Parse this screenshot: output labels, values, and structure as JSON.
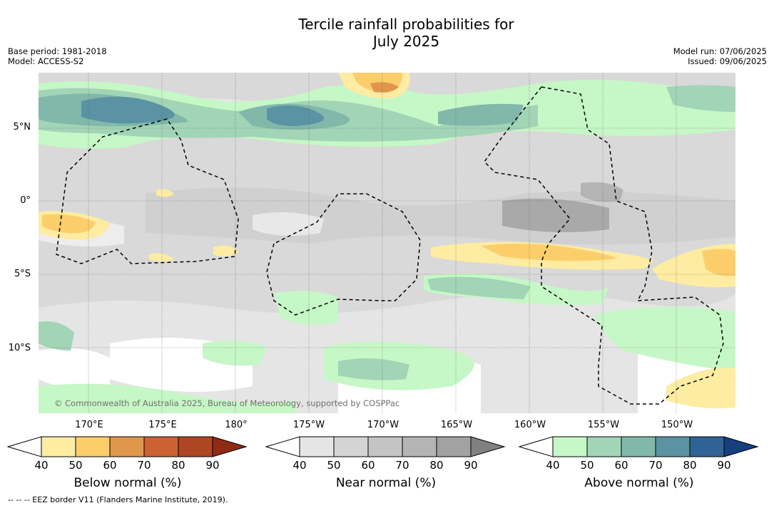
{
  "title_line1": "Tercile rainfall probabilities for",
  "title_line2": "July 2025",
  "base_period": "Base period: 1981-2018",
  "model": "Model: ACCESS-S2",
  "model_run": "Model run: 07/06/2025",
  "issued": "Issued: 09/06/2025",
  "lat_labels": [
    "5°N",
    "0°",
    "5°S",
    "10°S"
  ],
  "lon_labels": [
    "170°E",
    "175°E",
    "180°",
    "175°W",
    "170°W",
    "165°W",
    "160°W",
    "155°W",
    "150°W"
  ],
  "copyright": "© Commonwealth of Australia 2025, Bureau of Meteorology, supported by COSPPac",
  "colorbars": [
    {
      "title": "Below normal (%)",
      "ticks": [
        "40",
        "50",
        "60",
        "70",
        "80",
        "90"
      ],
      "colors": [
        "#ffffff",
        "#fdeca2",
        "#fcce6b",
        "#e0964c",
        "#cc6233",
        "#ad4622",
        "#8f2b15"
      ]
    },
    {
      "title": "Near normal (%)",
      "ticks": [
        "40",
        "50",
        "60",
        "70",
        "80",
        "90"
      ],
      "colors": [
        "#ffffff",
        "#e5e5e5",
        "#d4d4d4",
        "#c4c4c4",
        "#b4b4b4",
        "#a2a2a2",
        "#808080"
      ]
    },
    {
      "title": "Above normal (%)",
      "ticks": [
        "40",
        "50",
        "60",
        "70",
        "80",
        "90"
      ],
      "colors": [
        "#ffffff",
        "#c6f7c6",
        "#a2d4b6",
        "#81b8aa",
        "#5a93a3",
        "#2f6396",
        "#173f7e"
      ]
    }
  ],
  "footnote": "--  --  -- EEZ border V11 (Flanders Marine Institute, 2019)."
}
